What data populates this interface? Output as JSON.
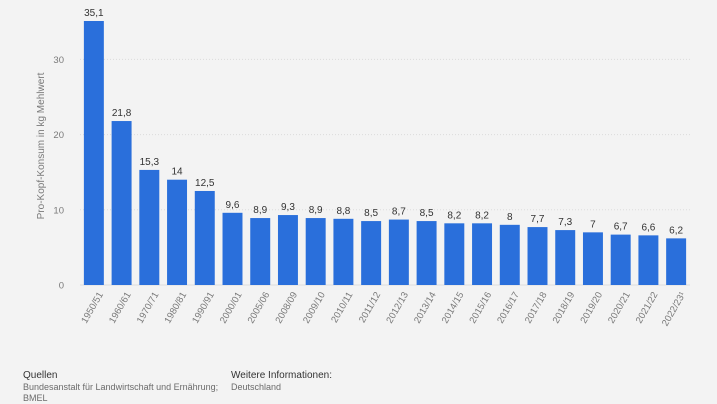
{
  "chart_data": {
    "type": "bar",
    "ylabel": "Pro-Kopf-Konsum in kg Mehlwert",
    "ylim": [
      0,
      35.1
    ],
    "yticks": [
      "0",
      "10",
      "20",
      "30"
    ],
    "grid": true,
    "categories": [
      "1950/51",
      "1960/61",
      "1970/71",
      "1980/81",
      "1990/91",
      "2000/01",
      "2005/06",
      "2008/09",
      "2009/10",
      "2010/11",
      "2011/12",
      "2012/13",
      "2013/14",
      "2014/15",
      "2015/16",
      "2016/17",
      "2017/18",
      "2018/19",
      "2019/20",
      "2020/21",
      "2021/22",
      "2022/23¹"
    ],
    "values": [
      35.1,
      21.8,
      15.3,
      14,
      12.5,
      9.6,
      8.9,
      9.3,
      8.9,
      8.8,
      8.5,
      8.7,
      8.5,
      8.2,
      8.2,
      8,
      7.7,
      7.3,
      7,
      6.7,
      6.6,
      6.2
    ],
    "value_labels": [
      "35,1",
      "21,8",
      "15,3",
      "14",
      "12,5",
      "9,6",
      "8,9",
      "9,3",
      "8,9",
      "8,8",
      "8,5",
      "8,7",
      "8,5",
      "8,2",
      "8,2",
      "8",
      "7,7",
      "7,3",
      "7",
      "6,7",
      "6,6",
      "6,2"
    ],
    "colors": {
      "bar": "#2a6fdb",
      "grid": "#dcdcdc",
      "label": "#333333",
      "axis_text": "#7a7a7a"
    }
  },
  "footer": {
    "sources_title": "Quellen",
    "sources_lines": [
      "Bundesanstalt für Landwirtschaft und Ernährung;",
      "BMEL"
    ],
    "info_title": "Weitere Informationen:",
    "info_lines": [
      "Deutschland"
    ]
  }
}
